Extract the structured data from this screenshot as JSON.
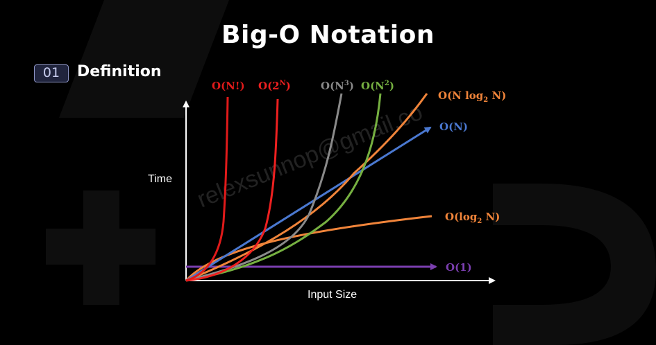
{
  "header": {
    "title": "Big-O Notation"
  },
  "section": {
    "number": "01",
    "title": "Definition"
  },
  "diagram": {
    "y_axis_label": "Time",
    "x_axis_label": "Input Size",
    "watermark": "relexsunnop@gmail.co",
    "curves": [
      {
        "id": "factorial",
        "label_main": "O(N!)",
        "color": "#e11a1a"
      },
      {
        "id": "exponential",
        "label_main": "O(2",
        "label_sup": "N",
        "label_end": ")",
        "color": "#ee2020"
      },
      {
        "id": "cubic",
        "label_main": "O(N",
        "label_sup": "3",
        "label_end": ")",
        "color": "#8a8a8a"
      },
      {
        "id": "quadratic",
        "label_main": "O(N",
        "label_sup": "2",
        "label_end": ")",
        "color": "#76b041"
      },
      {
        "id": "n-log-n",
        "label_main": "O(N log",
        "label_sub": "2",
        "label_end": " N)",
        "color": "#f0843a"
      },
      {
        "id": "linear",
        "label_main": "O(N)",
        "color": "#4a78d0"
      },
      {
        "id": "logarithmic",
        "label_main": "O(log",
        "label_sub": "2",
        "label_end": " N)",
        "color": "#f0843a"
      },
      {
        "id": "constant",
        "label_main": "O(1)",
        "color": "#7b3fb0"
      }
    ]
  }
}
